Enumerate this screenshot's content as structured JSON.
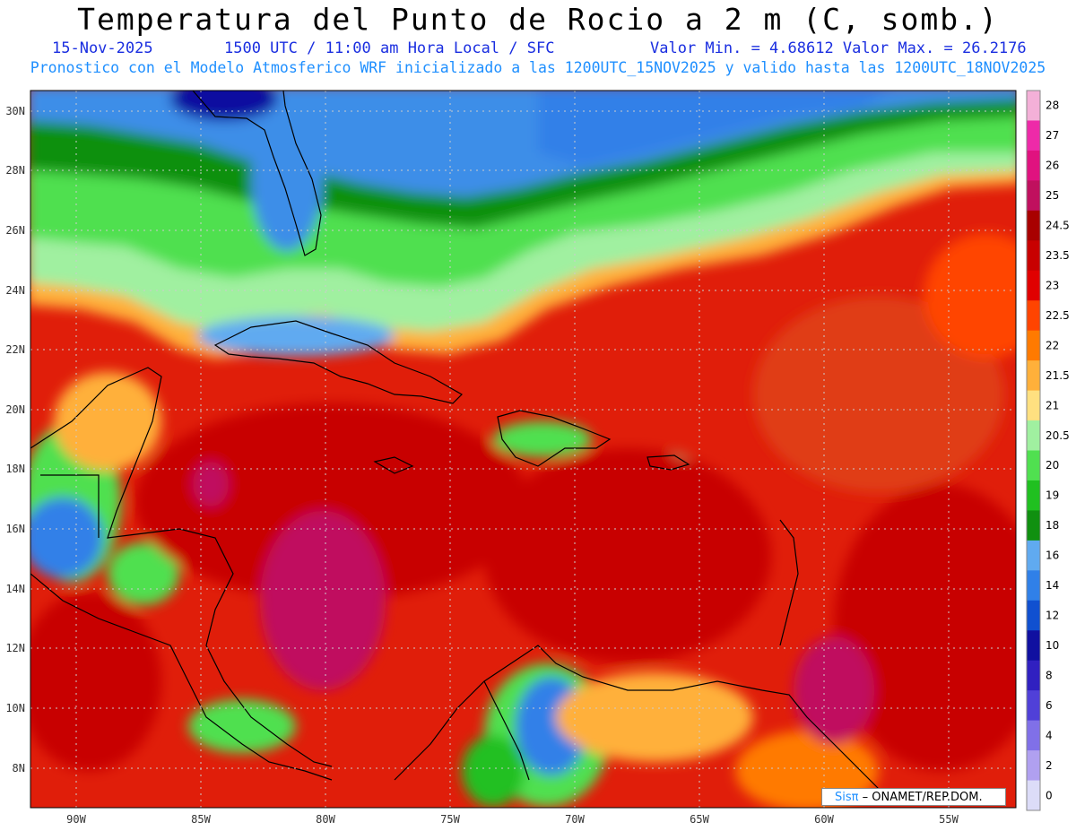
{
  "header": {
    "title": "Temperatura del Punto de Rocio a 2 m (C, somb.)",
    "date": "15-Nov-2025",
    "time": "1500 UTC / 11:00 am Hora Local / SFC",
    "minmax": "Valor Min. = 4.68612  Valor Max. = 26.2176",
    "model_line": "Pronostico con el Modelo Atmosferico WRF inicializado a las 1200UTC_15NOV2025 y valido hasta las  1200UTC_18NOV2025"
  },
  "axes": {
    "lat_labels": [
      "30N",
      "28N",
      "26N",
      "24N",
      "22N",
      "20N",
      "18N",
      "16N",
      "14N",
      "12N",
      "10N",
      "8N"
    ],
    "lon_labels": [
      "90W",
      "85W",
      "80W",
      "75W",
      "70W",
      "65W",
      "60W",
      "55W"
    ]
  },
  "legend": {
    "labels": [
      "28",
      "27",
      "26",
      "25",
      "24.5",
      "23.5",
      "23",
      "22.5",
      "22",
      "21.5",
      "21",
      "20.5",
      "20",
      "19",
      "18",
      "16",
      "14",
      "12",
      "10",
      "8",
      "6",
      "4",
      "2",
      "0"
    ],
    "colors": [
      "#f4b0d8",
      "#ee2aa8",
      "#e0127f",
      "#c0105e",
      "#a80000",
      "#c80000",
      "#e00000",
      "#ff4400",
      "#ff7a00",
      "#ffb03a",
      "#ffe080",
      "#a0f0a0",
      "#50e050",
      "#20c020",
      "#109010",
      "#60aaf0",
      "#3080e8",
      "#1050d0",
      "#1010a0",
      "#3020c0",
      "#5040d8",
      "#8070e8",
      "#b0a0f0",
      "#dcdcf8"
    ]
  },
  "colors": {
    "title": "#000000",
    "subtitle_dark": "#1a2ee0",
    "subtitle_light": "#1e8fff",
    "ocean_hot": "#e01e0a",
    "dry": "#3d8ee8"
  },
  "credit": {
    "brand": "Sisπ",
    "text": " – ONAMET/REP.DOM."
  }
}
